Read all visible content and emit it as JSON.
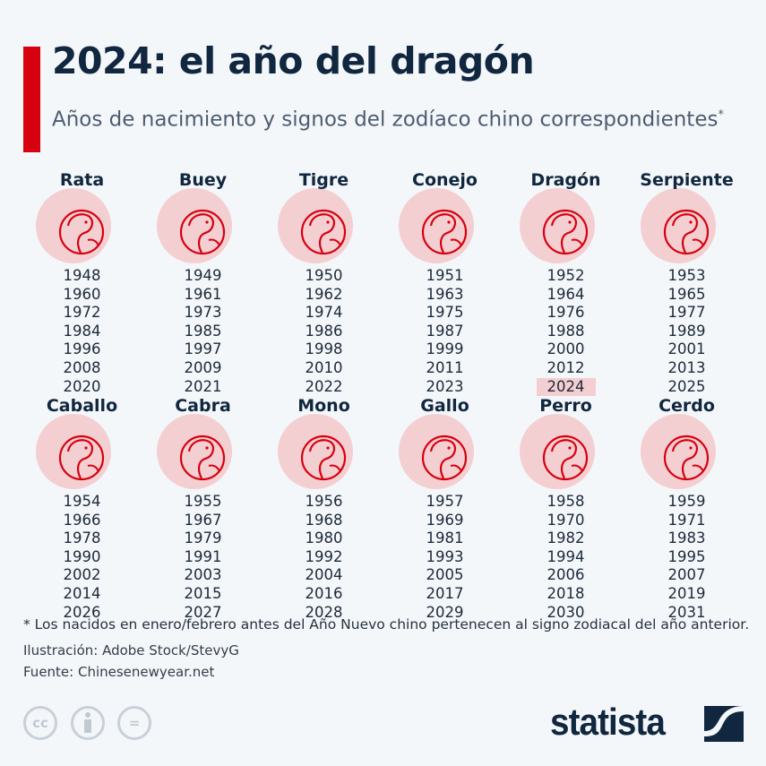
{
  "header": {
    "title": "2024: el año del dragón",
    "subtitle": "Años de nacimiento y signos del zodíaco chino correspondientes",
    "subtitle_mark": "*"
  },
  "colors": {
    "accent": "#d7000f",
    "title": "#10273f",
    "highlight": "#f3cfd2"
  },
  "signs": [
    {
      "name": "Rata",
      "icon": "rat-icon",
      "years": [
        "1948",
        "1960",
        "1972",
        "1984",
        "1996",
        "2008",
        "2020"
      ]
    },
    {
      "name": "Buey",
      "icon": "ox-icon",
      "years": [
        "1949",
        "1961",
        "1973",
        "1985",
        "1997",
        "2009",
        "2021"
      ]
    },
    {
      "name": "Tigre",
      "icon": "tiger-icon",
      "years": [
        "1950",
        "1962",
        "1974",
        "1986",
        "1998",
        "2010",
        "2022"
      ]
    },
    {
      "name": "Conejo",
      "icon": "rabbit-icon",
      "years": [
        "1951",
        "1963",
        "1975",
        "1987",
        "1999",
        "2011",
        "2023"
      ]
    },
    {
      "name": "Dragón",
      "icon": "dragon-icon",
      "years": [
        "1952",
        "1964",
        "1976",
        "1988",
        "2000",
        "2012",
        "2024"
      ],
      "highlight": "2024"
    },
    {
      "name": "Serpiente",
      "icon": "snake-icon",
      "years": [
        "1953",
        "1965",
        "1977",
        "1989",
        "2001",
        "2013",
        "2025"
      ]
    },
    {
      "name": "Caballo",
      "icon": "horse-icon",
      "years": [
        "1954",
        "1966",
        "1978",
        "1990",
        "2002",
        "2014",
        "2026"
      ]
    },
    {
      "name": "Cabra",
      "icon": "goat-icon",
      "years": [
        "1955",
        "1967",
        "1979",
        "1991",
        "2003",
        "2015",
        "2027"
      ]
    },
    {
      "name": "Mono",
      "icon": "monkey-icon",
      "years": [
        "1956",
        "1968",
        "1980",
        "1992",
        "2004",
        "2016",
        "2028"
      ]
    },
    {
      "name": "Gallo",
      "icon": "rooster-icon",
      "years": [
        "1957",
        "1969",
        "1981",
        "1993",
        "2005",
        "2017",
        "2029"
      ]
    },
    {
      "name": "Perro",
      "icon": "dog-icon",
      "years": [
        "1958",
        "1970",
        "1982",
        "1994",
        "2006",
        "2018",
        "2030"
      ]
    },
    {
      "name": "Cerdo",
      "icon": "pig-icon",
      "years": [
        "1959",
        "1971",
        "1983",
        "1995",
        "2007",
        "2019",
        "2031"
      ]
    }
  ],
  "footer": {
    "note": "* Los nacidos en enero/febrero antes del Año Nuevo chino pertenecen al signo zodiacal del año anterior.",
    "illustration": "Ilustración: Adobe Stock/StevyG",
    "source": "Fuente: Chinesenewyear.net",
    "license_icons": [
      "cc-icon",
      "attribution-icon",
      "no-derivatives-icon"
    ],
    "cc_label": "cc",
    "nd_label": "=",
    "logo": "statista"
  }
}
